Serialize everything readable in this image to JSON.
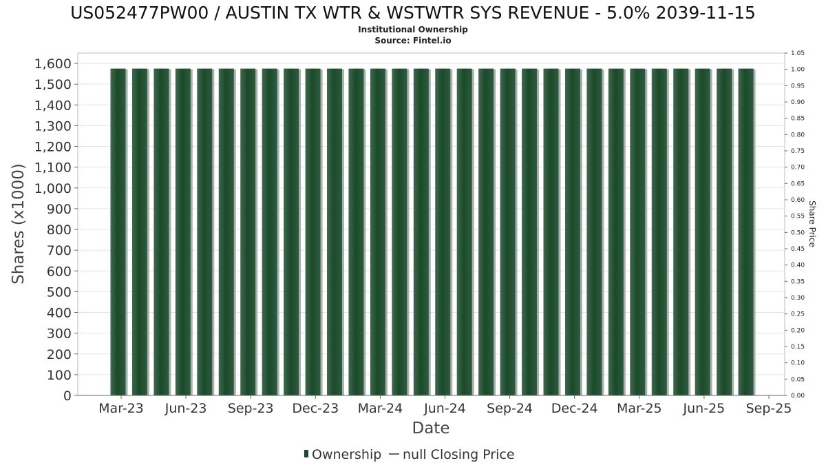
{
  "title": "US052477PW00 / AUSTIN TX WTR & WSTWTR SYS REVENUE - 5.0% 2039-11-15",
  "subtitle_lines": [
    "Institutional Ownership",
    "Source: Fintel.io"
  ],
  "colors": {
    "bar_dark": "#1a4a2a",
    "bar_mid": "#2f5a3f",
    "bar_light": "#3e6a4c",
    "shadow": "#9a9a9a",
    "grid": "#e3e3e3",
    "axis": "#666666"
  },
  "chart_data": {
    "type": "bar",
    "xlabel": "Date",
    "ylabel": "Shares (x1000)",
    "y2label": "Share Price",
    "ylim": [
      0,
      1650
    ],
    "y2lim": [
      0,
      1.05
    ],
    "grid": true,
    "legend_position": "bottom",
    "y_ticks": [
      0,
      100,
      200,
      300,
      400,
      500,
      600,
      700,
      800,
      900,
      1000,
      1100,
      1200,
      1300,
      1400,
      1500,
      1600
    ],
    "y_tick_labels": [
      "0",
      "100",
      "200",
      "300",
      "400",
      "500",
      "600",
      "700",
      "800",
      "900",
      "1,000",
      "1,100",
      "1,200",
      "1,300",
      "1,400",
      "1,500",
      "1,600"
    ],
    "y2_ticks": [
      0,
      0.05,
      0.1,
      0.15,
      0.2,
      0.25,
      0.3,
      0.35,
      0.4,
      0.45,
      0.5,
      0.55,
      0.6,
      0.65,
      0.7,
      0.75,
      0.8,
      0.85,
      0.9,
      0.95,
      1.0,
      1.05
    ],
    "y2_tick_labels": [
      "0.00",
      "0.05",
      "0.10",
      "0.15",
      "0.20",
      "0.25",
      "0.30",
      "0.35",
      "0.40",
      "0.45",
      "0.50",
      "0.55",
      "0.60",
      "0.65",
      "0.70",
      "0.75",
      "0.80",
      "0.85",
      "0.90",
      "0.95",
      "1.00",
      "1.05"
    ],
    "x_tick_labels": [
      "Mar-23",
      "Jun-23",
      "Sep-23",
      "Dec-23",
      "Mar-24",
      "Jun-24",
      "Sep-24",
      "Dec-24",
      "Mar-25",
      "Jun-25",
      "Sep-25"
    ],
    "series": [
      {
        "name": "Ownership",
        "values": [
          1575,
          1575,
          1575,
          1575,
          1575,
          1575,
          1575,
          1575,
          1575,
          1575,
          1575,
          1575,
          1575,
          1575,
          1575,
          1575,
          1575,
          1575,
          1575,
          1575,
          1575,
          1575,
          1575,
          1575,
          1575,
          1575,
          1575,
          1575,
          1575,
          1575
        ]
      },
      {
        "name": "null Closing Price",
        "values": []
      }
    ]
  },
  "legend": [
    {
      "label": "Ownership",
      "symbol": "bar"
    },
    {
      "label": "null Closing Price",
      "symbol": "line"
    }
  ]
}
